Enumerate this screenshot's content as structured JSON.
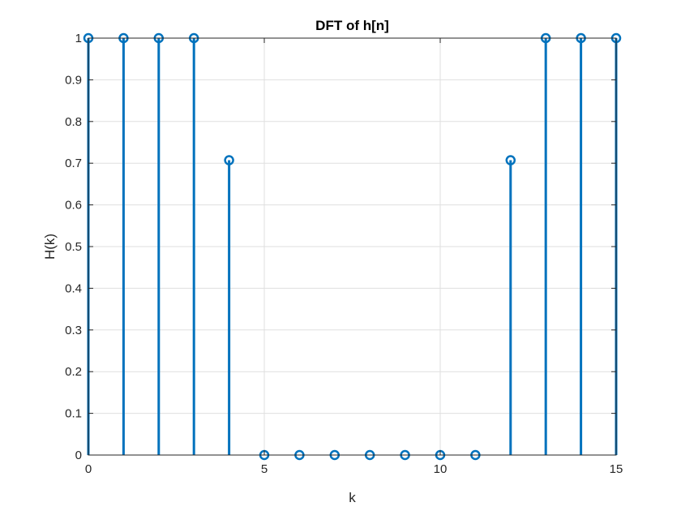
{
  "chart_data": {
    "type": "stem",
    "title": "DFT of h[n]",
    "xlabel": "k",
    "ylabel": "H(k)",
    "xlim": [
      0,
      15
    ],
    "ylim": [
      0,
      1
    ],
    "x_ticks": [
      0,
      5,
      10,
      15
    ],
    "y_ticks": [
      0,
      0.1,
      0.2,
      0.3,
      0.4,
      0.5,
      0.6,
      0.7,
      0.8,
      0.9,
      1
    ],
    "grid": true,
    "x": [
      0,
      1,
      2,
      3,
      4,
      5,
      6,
      7,
      8,
      9,
      10,
      11,
      12,
      13,
      14,
      15
    ],
    "values": [
      1,
      1,
      1,
      1,
      0.7071,
      0,
      0,
      0,
      0,
      0,
      0,
      0,
      0.7071,
      1,
      1,
      1
    ],
    "series_color": "#0072BD",
    "grid_color": "#dfdfdf",
    "axis_color": "#262626"
  }
}
